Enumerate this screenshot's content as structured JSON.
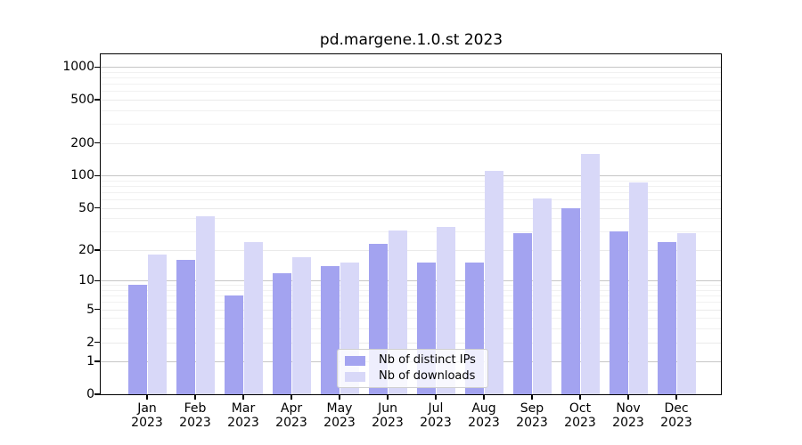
{
  "chart_data": {
    "type": "bar",
    "title": "pd.margene.1.0.st 2023",
    "year": "2023",
    "categories": [
      "Jan",
      "Feb",
      "Mar",
      "Apr",
      "May",
      "Jun",
      "Jul",
      "Aug",
      "Sep",
      "Oct",
      "Nov",
      "Dec"
    ],
    "series": [
      {
        "name": "Nb of distinct IPs",
        "color": "#a3a3f0",
        "values": [
          9,
          16,
          7,
          12,
          14,
          23,
          15,
          15,
          29,
          50,
          30,
          24
        ]
      },
      {
        "name": "Nb of downloads",
        "color": "#d8d8f8",
        "values": [
          18,
          42,
          24,
          17,
          15,
          31,
          33,
          110,
          62,
          160,
          87,
          29
        ]
      }
    ],
    "xlabel": "",
    "ylabel": "",
    "yscale": "log10(1+value)",
    "ylim": [
      0,
      1000
    ],
    "yticks": [
      0,
      1,
      2,
      5,
      10,
      20,
      50,
      100,
      200,
      500,
      1000
    ],
    "grid": true,
    "legend_position": "bottom-center-inside"
  }
}
